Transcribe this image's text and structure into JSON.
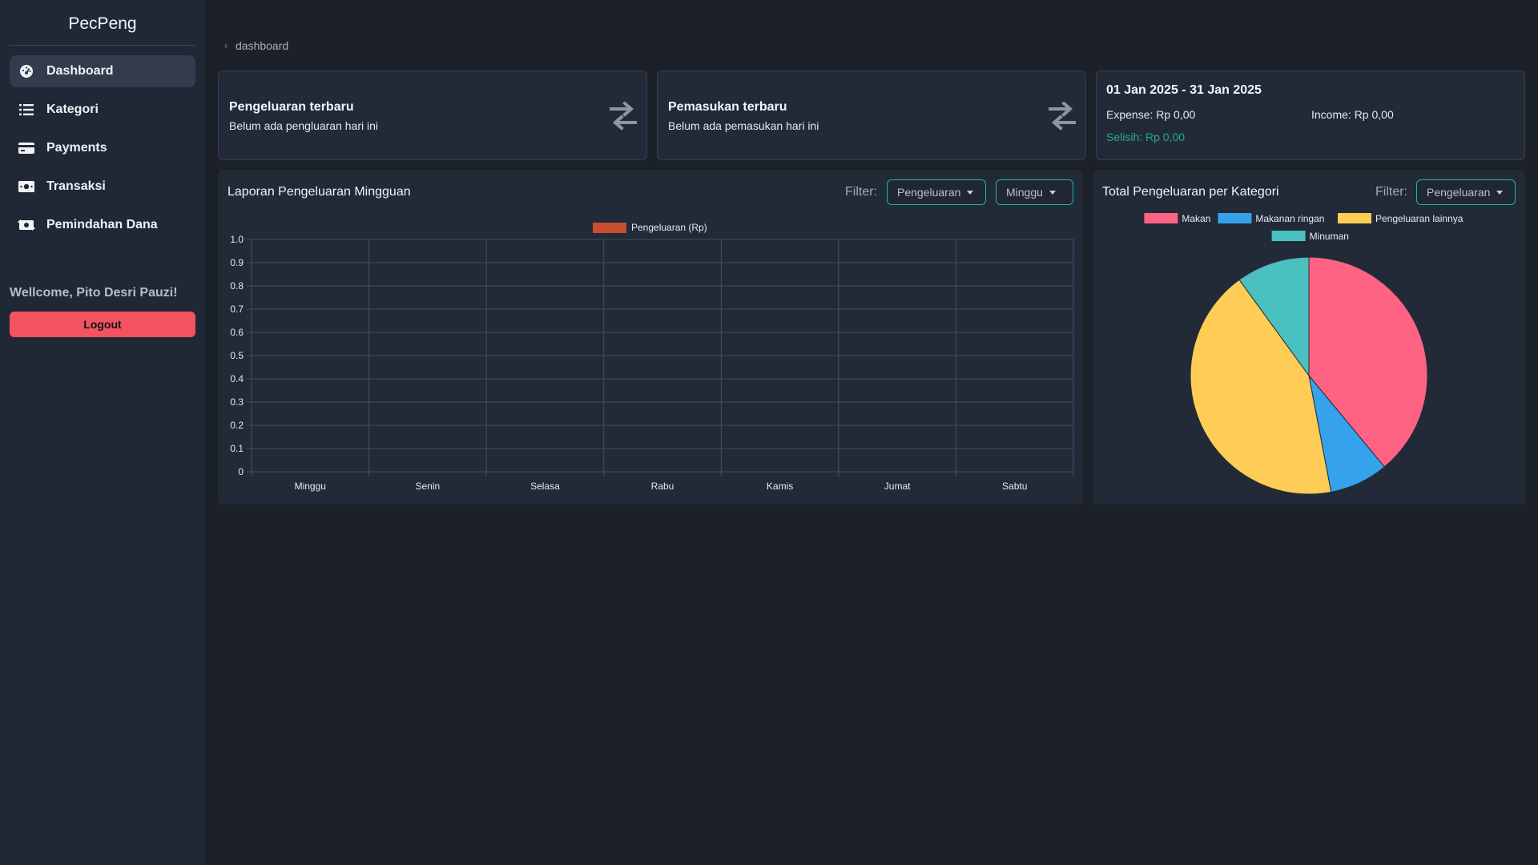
{
  "app": {
    "brand": "PecPeng"
  },
  "sidebar": {
    "items": [
      {
        "label": "Dashboard",
        "icon": "dashboard-gauge-icon",
        "active": true
      },
      {
        "label": "Kategori",
        "icon": "list-icon"
      },
      {
        "label": "Payments",
        "icon": "credit-card-icon"
      },
      {
        "label": "Transaksi",
        "icon": "money-bill-icon"
      },
      {
        "label": "Pemindahan Dana",
        "icon": "money-transfer-icon"
      }
    ],
    "welcome": "Wellcome, Pito Desri Pauzi!",
    "logout_label": "Logout"
  },
  "breadcrumb": {
    "current": "dashboard"
  },
  "cards": {
    "expense": {
      "title": "Pengeluaran terbaru",
      "subtitle": "Belum ada pengluaran hari ini"
    },
    "income": {
      "title": "Pemasukan terbaru",
      "subtitle": "Belum ada pemasukan hari ini"
    },
    "summary": {
      "range": "01 Jan 2025 - 31 Jan 2025",
      "expense": "Expense: Rp 0,00",
      "income": "Income: Rp 0,00",
      "difference": "Selisih: Rp 0,00",
      "difference_color": "#22b07a"
    }
  },
  "bar_panel": {
    "title": "Laporan Pengeluaran Mingguan",
    "filter_label": "Filter:",
    "type_filter": "Pengeluaran",
    "period_filter": "Minggu"
  },
  "pie_panel": {
    "title": "Total Pengeluaran per Kategori",
    "filter_label": "Filter:",
    "type_filter": "Pengeluaran"
  },
  "chart_data": [
    {
      "type": "bar",
      "title": "Laporan Pengeluaran Mingguan",
      "categories": [
        "Minggu",
        "Senin",
        "Selasa",
        "Rabu",
        "Kamis",
        "Jumat",
        "Sabtu"
      ],
      "series": [
        {
          "name": "Pengeluaran (Rp)",
          "values": [
            0,
            0,
            0,
            0,
            0,
            0,
            0
          ],
          "color": "#c8502f"
        }
      ],
      "yticks": [
        "0",
        "0.1",
        "0.2",
        "0.3",
        "0.4",
        "0.5",
        "0.6",
        "0.7",
        "0.8",
        "0.9",
        "1.0"
      ],
      "ylim": [
        0,
        1
      ],
      "grid": true,
      "legend": "top-center"
    },
    {
      "type": "pie",
      "title": "Total Pengeluaran per Kategori",
      "labels": [
        "Makan",
        "Makanan ringan",
        "Pengeluaran lainnya",
        "Minuman"
      ],
      "values": [
        39,
        8,
        43,
        10
      ],
      "colors": [
        "#ff6384",
        "#36a2eb",
        "#ffcd56",
        "#4bc0c0"
      ],
      "legend": "top-center"
    }
  ]
}
